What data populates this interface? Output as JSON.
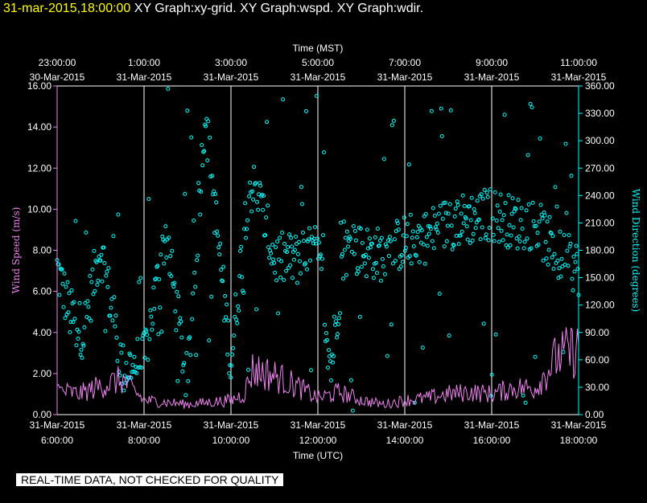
{
  "header": {
    "timestamp": "31-mar-2015,18:00:00",
    "titles": "XY Graph:xy-grid.  XY Graph:wspd.  XY Graph:wdir."
  },
  "notice": "REAL-TIME DATA, NOT CHECKED FOR QUALITY",
  "colors": {
    "wind_speed": "#ee82ee",
    "wind_direction": "#00ffff",
    "grid": "#ffffff",
    "background": "#000000"
  },
  "chart_data": {
    "type": "line",
    "top_axis_title": "Time (MST)",
    "bottom_axis_title": "Time (UTC)",
    "ylabel_left": "Wind Speed (m/s)",
    "ylabel_right": "Wind Direction (degrees)",
    "ylim_left": [
      0,
      16
    ],
    "ylim_right": [
      0,
      360
    ],
    "xlim_utc_hours": [
      6,
      18
    ],
    "grid": "vertical lines at 2-hour intervals",
    "left_ticks": [
      "0.00",
      "2.00",
      "4.00",
      "6.00",
      "8.00",
      "10.00",
      "12.00",
      "14.00",
      "16.00"
    ],
    "right_ticks": [
      "0.00",
      "30.00",
      "60.00",
      "90.00",
      "120.00",
      "150.00",
      "180.00",
      "210.00",
      "240.00",
      "270.00",
      "300.00",
      "330.00",
      "360.00"
    ],
    "bottom_ticks": [
      {
        "date": "31-Mar-2015",
        "time": "6:00:00",
        "utc_hour": 6
      },
      {
        "date": "31-Mar-2015",
        "time": "8:00:00",
        "utc_hour": 8
      },
      {
        "date": "31-Mar-2015",
        "time": "10:00:00",
        "utc_hour": 10
      },
      {
        "date": "31-Mar-2015",
        "time": "12:00:00",
        "utc_hour": 12
      },
      {
        "date": "31-Mar-2015",
        "time": "14:00:00",
        "utc_hour": 14
      },
      {
        "date": "31-Mar-2015",
        "time": "16:00:00",
        "utc_hour": 16
      },
      {
        "date": "31-Mar-2015",
        "time": "18:00:00",
        "utc_hour": 18
      }
    ],
    "top_ticks": [
      {
        "time": "23:00:00",
        "date": "30-Mar-2015",
        "utc_hour": 6
      },
      {
        "time": "1:00:00",
        "date": "31-Mar-2015",
        "utc_hour": 8
      },
      {
        "time": "3:00:00",
        "date": "31-Mar-2015",
        "utc_hour": 10
      },
      {
        "time": "5:00:00",
        "date": "31-Mar-2015",
        "utc_hour": 12
      },
      {
        "time": "7:00:00",
        "date": "31-Mar-2015",
        "utc_hour": 14
      },
      {
        "time": "9:00:00",
        "date": "31-Mar-2015",
        "utc_hour": 16
      },
      {
        "time": "11:00:00",
        "date": "31-Mar-2015",
        "utc_hour": 18
      }
    ],
    "series": [
      {
        "name": "Wind Speed",
        "axis": "left",
        "style": "line",
        "x": [
          6.0,
          6.5,
          7.0,
          7.5,
          8.0,
          8.5,
          9.0,
          9.5,
          10.0,
          10.3,
          10.5,
          11.0,
          11.5,
          12.0,
          12.5,
          13.0,
          13.5,
          14.0,
          14.5,
          15.0,
          15.5,
          16.0,
          16.5,
          17.0,
          17.5,
          18.0
        ],
        "y": [
          1.2,
          1.0,
          1.4,
          1.7,
          0.7,
          0.6,
          0.5,
          0.6,
          0.7,
          1.0,
          2.2,
          1.9,
          1.4,
          0.8,
          1.1,
          0.7,
          0.5,
          0.7,
          0.8,
          1.0,
          1.1,
          1.0,
          1.3,
          1.3,
          2.8,
          3.2
        ]
      },
      {
        "name": "Wind Direction",
        "axis": "right",
        "style": "scatter",
        "x": [
          6.0,
          6.3,
          6.6,
          7.0,
          7.5,
          8.0,
          8.5,
          9.0,
          9.4,
          10.0,
          10.4,
          10.6,
          11.0,
          11.5,
          12.0,
          12.3,
          12.6,
          13.0,
          13.5,
          14.0,
          14.5,
          15.0,
          15.5,
          16.0,
          16.5,
          17.0,
          17.5,
          18.0
        ],
        "y": [
          160,
          110,
          90,
          185,
          50,
          60,
          200,
          30,
          330,
          55,
          250,
          245,
          170,
          170,
          180,
          50,
          180,
          180,
          175,
          190,
          195,
          210,
          215,
          220,
          210,
          210,
          175,
          160
        ]
      }
    ]
  }
}
